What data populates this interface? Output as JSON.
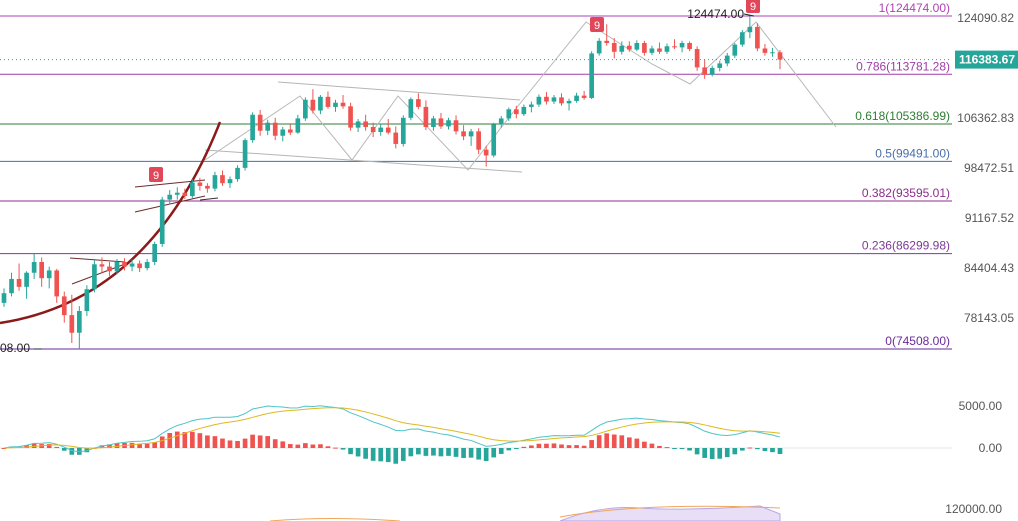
{
  "chart_data": {
    "type": "candlestick",
    "price_axis": {
      "ticks": [
        "124090.82",
        "106362.83",
        "98472.51",
        "91167.52",
        "84404.43",
        "78143.05"
      ],
      "ylim": [
        72000,
        126500
      ],
      "scale": "log",
      "current_price": "116383.67",
      "current_price_color": "#26a69a"
    },
    "fib_levels": [
      {
        "label": "1(124474.00)",
        "value": 124474.0,
        "color": "#b042b5"
      },
      {
        "label": "0.786(113781.28)",
        "value": 113781.28,
        "color": "#a23aa8"
      },
      {
        "label": "0.618(105386.99)",
        "value": 105386.99,
        "color": "#2e7d32"
      },
      {
        "label": "0.5(99491.00)",
        "value": 99491.0,
        "color": "#4a6ea8"
      },
      {
        "label": "0.382(93595.01)",
        "value": 93595.01,
        "color": "#8e2c8e"
      },
      {
        "label": "0.236(86299.98)",
        "value": 86299.98,
        "color": "#7b3a96"
      },
      {
        "label": "0(74508.00)",
        "value": 74508.0,
        "color": "#6a2a9a"
      }
    ],
    "annotations": {
      "high_label": "124474.00",
      "low_label": "08.00",
      "td_markers": [
        "9",
        "9",
        "9"
      ]
    },
    "candles": [
      [
        80000,
        81800,
        79500,
        81200
      ],
      [
        81200,
        83800,
        80800,
        83000
      ],
      [
        83000,
        85000,
        81500,
        82000
      ],
      [
        82000,
        84000,
        80500,
        83800
      ],
      [
        83800,
        86300,
        83000,
        85200
      ],
      [
        85200,
        85800,
        82000,
        83100
      ],
      [
        83100,
        84600,
        81800,
        84100
      ],
      [
        84100,
        84300,
        80000,
        80800
      ],
      [
        80800,
        81400,
        77600,
        78500
      ],
      [
        78500,
        81000,
        75200,
        76400
      ],
      [
        76400,
        79600,
        74500,
        79000
      ],
      [
        79000,
        82200,
        78400,
        81700
      ],
      [
        81700,
        85400,
        81300,
        84900
      ],
      [
        84900,
        85800,
        83800,
        84600
      ],
      [
        84600,
        85200,
        83400,
        84000
      ],
      [
        84000,
        85600,
        83600,
        85200
      ],
      [
        85200,
        85700,
        84100,
        84600
      ],
      [
        84600,
        85500,
        84000,
        85000
      ],
      [
        85000,
        85400,
        83900,
        84400
      ],
      [
        84400,
        85600,
        84100,
        85200
      ],
      [
        85200,
        87900,
        84800,
        87600
      ],
      [
        87600,
        94200,
        87200,
        93800
      ],
      [
        93800,
        95200,
        93100,
        94500
      ],
      [
        94500,
        95600,
        93800,
        94800
      ],
      [
        94800,
        95400,
        93900,
        94300
      ],
      [
        94300,
        96800,
        94000,
        96300
      ],
      [
        96300,
        97000,
        95100,
        95800
      ],
      [
        95800,
        96200,
        94800,
        95400
      ],
      [
        95400,
        97900,
        95000,
        97400
      ],
      [
        97400,
        98100,
        95800,
        96200
      ],
      [
        96200,
        97200,
        95500,
        96800
      ],
      [
        96800,
        98900,
        96400,
        98500
      ],
      [
        98500,
        103100,
        98100,
        102800
      ],
      [
        102800,
        107300,
        102400,
        106900
      ],
      [
        106900,
        107700,
        103500,
        104300
      ],
      [
        104300,
        106100,
        103600,
        105600
      ],
      [
        105600,
        106400,
        102800,
        103500
      ],
      [
        103500,
        104900,
        102600,
        104500
      ],
      [
        104500,
        105300,
        103600,
        104000
      ],
      [
        104000,
        106900,
        103800,
        106300
      ],
      [
        106300,
        109800,
        105900,
        109400
      ],
      [
        109400,
        111200,
        107100,
        107600
      ],
      [
        107600,
        110200,
        107000,
        109900
      ],
      [
        109900,
        110800,
        107900,
        108200
      ],
      [
        108200,
        109400,
        107400,
        108900
      ],
      [
        108900,
        110200,
        107900,
        108300
      ],
      [
        108300,
        108900,
        104300,
        104800
      ],
      [
        104800,
        106200,
        104100,
        105800
      ],
      [
        105800,
        106900,
        104300,
        104900
      ],
      [
        104900,
        105600,
        103300,
        104100
      ],
      [
        104100,
        105400,
        103500,
        104800
      ],
      [
        104800,
        106200,
        103700,
        104000
      ],
      [
        104000,
        105000,
        101500,
        102200
      ],
      [
        102200,
        106800,
        101800,
        106400
      ],
      [
        106400,
        109800,
        106000,
        109500
      ],
      [
        109500,
        110500,
        107800,
        108200
      ],
      [
        108200,
        109300,
        104400,
        104900
      ],
      [
        104900,
        106700,
        104300,
        106300
      ],
      [
        106300,
        107200,
        104600,
        105000
      ],
      [
        105000,
        106400,
        104500,
        106000
      ],
      [
        106000,
        106800,
        103700,
        104200
      ],
      [
        104200,
        105200,
        102800,
        103400
      ],
      [
        103400,
        104600,
        101900,
        104200
      ],
      [
        104200,
        104700,
        100600,
        101300
      ],
      [
        101300,
        101900,
        98700,
        100400
      ],
      [
        100400,
        105600,
        100100,
        105300
      ],
      [
        105300,
        106700,
        104800,
        106300
      ],
      [
        106300,
        108100,
        105900,
        107800
      ],
      [
        107800,
        108400,
        106300,
        107000
      ],
      [
        107000,
        108600,
        106700,
        108200
      ],
      [
        108200,
        109100,
        107300,
        108600
      ],
      [
        108600,
        110300,
        108200,
        109900
      ],
      [
        109900,
        110700,
        108600,
        109100
      ],
      [
        109100,
        110200,
        108700,
        109800
      ],
      [
        109800,
        110500,
        108400,
        108800
      ],
      [
        108800,
        109600,
        107600,
        109200
      ],
      [
        109200,
        110600,
        108900,
        110100
      ],
      [
        110100,
        110900,
        109400,
        109700
      ],
      [
        109700,
        117900,
        109500,
        117500
      ],
      [
        117500,
        120300,
        117100,
        119800
      ],
      [
        119800,
        122900,
        118900,
        119400
      ],
      [
        119400,
        120300,
        116600,
        117800
      ],
      [
        117800,
        119700,
        117300,
        118900
      ],
      [
        118900,
        119700,
        117800,
        118200
      ],
      [
        118200,
        119900,
        117900,
        119400
      ],
      [
        119400,
        119800,
        117100,
        117600
      ],
      [
        117600,
        118900,
        117200,
        118400
      ],
      [
        118400,
        119500,
        117400,
        117800
      ],
      [
        117800,
        119300,
        117400,
        118800
      ],
      [
        118800,
        120100,
        118300,
        118600
      ],
      [
        118600,
        119800,
        117700,
        119400
      ],
      [
        119400,
        119700,
        117900,
        118300
      ],
      [
        118300,
        118800,
        114400,
        115000
      ],
      [
        115000,
        116400,
        113000,
        113700
      ],
      [
        113700,
        115300,
        113400,
        114900
      ],
      [
        114900,
        116200,
        114300,
        115700
      ],
      [
        115700,
        117600,
        115200,
        117100
      ],
      [
        117100,
        119400,
        116700,
        119100
      ],
      [
        119100,
        121800,
        118700,
        121400
      ],
      [
        121400,
        124474,
        120300,
        122400
      ],
      [
        122400,
        123100,
        117900,
        118400
      ],
      [
        118400,
        119200,
        117100,
        117600
      ],
      [
        117600,
        118500,
        116900,
        117700
      ],
      [
        117700,
        118100,
        114700,
        116383
      ]
    ]
  }
}
